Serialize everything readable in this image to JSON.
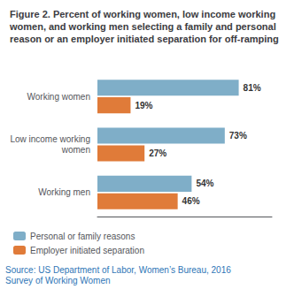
{
  "chart_data": {
    "type": "bar",
    "orientation": "horizontal",
    "title": "Figure 2. Percent of working women, low income working women, and working men selecting a family and personal reason or an employer initiated separation for off-ramping",
    "annotations": [
      "Source: US Department of Labor, Women’s Bureau, 2016\nSurvey of Working Women"
    ],
    "categories": [
      "Working women",
      "Low income working\nwomen",
      "Working men"
    ],
    "series": [
      {
        "name": "Personal or family reasons",
        "color": "#7faec8",
        "values": [
          81,
          73,
          54
        ],
        "value_labels": [
          "81%",
          "73%",
          "54%"
        ]
      },
      {
        "name": "Employer initiated separation",
        "color": "#e07b39",
        "values": [
          19,
          27,
          46
        ],
        "value_labels": [
          "19%",
          "27%",
          "46%"
        ]
      }
    ],
    "xlim": [
      0,
      100
    ],
    "data_labels": true,
    "tick_labels": "y",
    "grid": false,
    "legend": "lower left"
  }
}
